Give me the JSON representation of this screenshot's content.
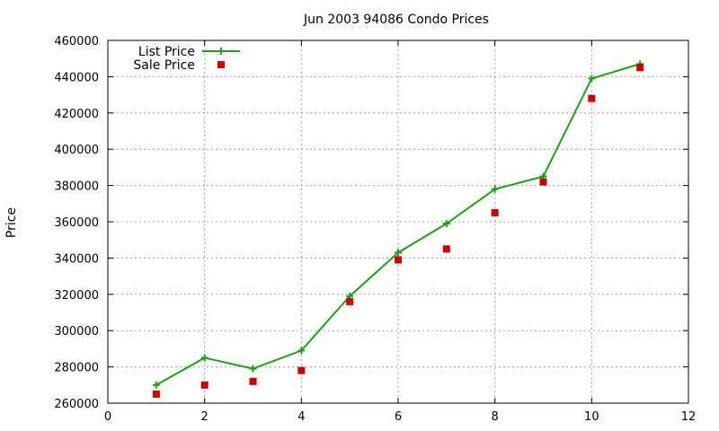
{
  "chart_data": {
    "type": "line",
    "title": "Jun 2003 94086 Condo Prices",
    "xlabel": "",
    "ylabel": "Price",
    "xlim": [
      0,
      12
    ],
    "ylim": [
      260000,
      460000
    ],
    "xticks": [
      0,
      2,
      4,
      6,
      8,
      10,
      12
    ],
    "yticks": [
      260000,
      280000,
      300000,
      320000,
      340000,
      360000,
      380000,
      400000,
      420000,
      440000,
      460000
    ],
    "xtick_labels": [
      "0",
      "2",
      "4",
      "6",
      "8",
      "10",
      "12"
    ],
    "ytick_labels": [
      "260000",
      "280000",
      "300000",
      "320000",
      "340000",
      "360000",
      "380000",
      "400000",
      "420000",
      "440000",
      "460000"
    ],
    "grid": true,
    "legend_position": "top-left",
    "series": [
      {
        "name": "List Price",
        "kind": "linespoints",
        "marker": "plus",
        "color": "#1aa01a",
        "x": [
          1,
          2,
          3,
          4,
          5,
          6,
          7,
          8,
          9,
          10,
          11
        ],
        "y": [
          270000,
          285000,
          279000,
          289000,
          319000,
          343000,
          359000,
          378000,
          385000,
          439000,
          447000
        ]
      },
      {
        "name": "Sale Price",
        "kind": "points",
        "marker": "square",
        "color": "#cc0000",
        "x": [
          1,
          2,
          3,
          4,
          5,
          6,
          7,
          8,
          9,
          10,
          11
        ],
        "y": [
          265000,
          270000,
          272000,
          278000,
          316000,
          339000,
          345000,
          365000,
          382000,
          428000,
          445000
        ]
      }
    ]
  }
}
